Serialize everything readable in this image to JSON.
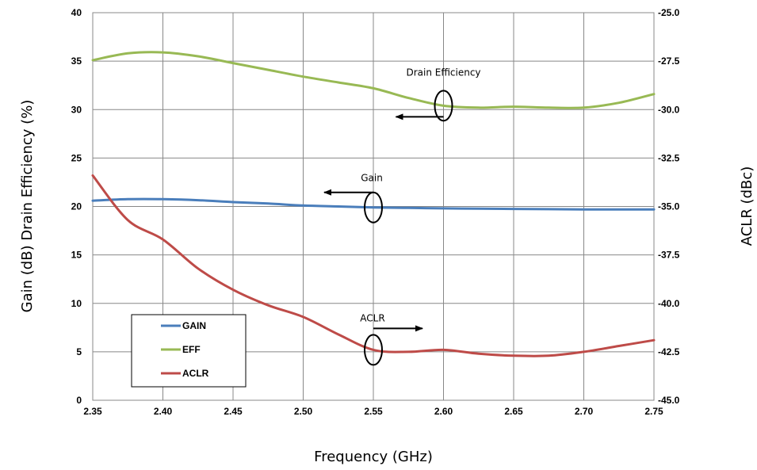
{
  "chart_data": {
    "type": "line",
    "title": "",
    "xlabel": "Frequency (GHz)",
    "ylabel_left": "Gain (dB) Drain Efficiency (%)",
    "ylabel_right": "ACLR (dBc)",
    "xlim": [
      2.35,
      2.75
    ],
    "ylim_left": [
      0,
      40
    ],
    "ylim_right": [
      -45.0,
      -25.0
    ],
    "x_ticks": [
      "2.35",
      "2.40",
      "2.45",
      "2.50",
      "2.55",
      "2.60",
      "2.65",
      "2.70",
      "2.75"
    ],
    "y_left_ticks": [
      "0",
      "5",
      "10",
      "15",
      "20",
      "25",
      "30",
      "35",
      "40"
    ],
    "y_right_ticks": [
      "-45.0",
      "-42.5",
      "-40.0",
      "-37.5",
      "-35.0",
      "-32.5",
      "-30.0",
      "-27.5",
      "-25.0"
    ],
    "grid": true,
    "legend_position": "bottom-left",
    "series": [
      {
        "name": "GAIN",
        "axis": "left",
        "color": "#4a7ebb",
        "x": [
          2.35,
          2.375,
          2.4,
          2.425,
          2.45,
          2.475,
          2.5,
          2.525,
          2.55,
          2.575,
          2.6,
          2.625,
          2.65,
          2.675,
          2.7,
          2.725,
          2.75
        ],
        "y": [
          20.6,
          20.75,
          20.75,
          20.65,
          20.45,
          20.3,
          20.1,
          20.0,
          19.9,
          19.85,
          19.8,
          19.78,
          19.75,
          19.72,
          19.7,
          19.7,
          19.7
        ]
      },
      {
        "name": "EFF",
        "axis": "left",
        "color": "#98b954",
        "x": [
          2.35,
          2.375,
          2.4,
          2.425,
          2.45,
          2.475,
          2.5,
          2.525,
          2.55,
          2.575,
          2.6,
          2.625,
          2.65,
          2.675,
          2.7,
          2.725,
          2.75
        ],
        "y": [
          35.1,
          35.8,
          35.9,
          35.5,
          34.8,
          34.1,
          33.4,
          32.8,
          32.2,
          31.2,
          30.4,
          30.2,
          30.3,
          30.2,
          30.2,
          30.7,
          31.6
        ]
      },
      {
        "name": "ACLR",
        "axis": "right",
        "color": "#be4b48",
        "x": [
          2.35,
          2.375,
          2.4,
          2.425,
          2.45,
          2.475,
          2.5,
          2.525,
          2.55,
          2.575,
          2.6,
          2.625,
          2.65,
          2.675,
          2.7,
          2.725,
          2.75
        ],
        "y": [
          -33.4,
          -35.7,
          -36.7,
          -38.2,
          -39.3,
          -40.1,
          -40.7,
          -41.6,
          -42.4,
          -42.5,
          -42.4,
          -42.6,
          -42.7,
          -42.7,
          -42.5,
          -42.2,
          -41.9
        ]
      }
    ],
    "annotations": [
      {
        "text": "Drain Efficiency",
        "series": "EFF",
        "x": 2.6,
        "arrow": "left"
      },
      {
        "text": "Gain",
        "series": "GAIN",
        "x": 2.55,
        "arrow": "left"
      },
      {
        "text": "ACLR",
        "series": "ACLR",
        "x": 2.55,
        "arrow": "right"
      }
    ]
  }
}
